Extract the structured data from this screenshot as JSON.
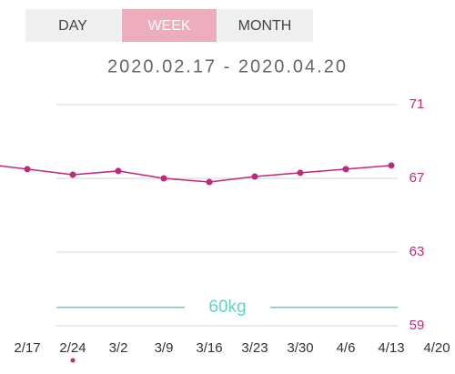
{
  "tabs": [
    "DAY",
    "WEEK",
    "MONTH"
  ],
  "selected_tab": 1,
  "chart_data": {
    "type": "line",
    "title": "2020.02.17 - 2020.04.20",
    "categories": [
      null,
      "2/17",
      "2/24",
      "3/2",
      "3/9",
      "3/16",
      "3/23",
      "3/30",
      "4/6",
      "4/13",
      "4/20"
    ],
    "values": [
      67.8,
      67.5,
      67.2,
      67.4,
      67.0,
      66.8,
      67.1,
      67.3,
      67.5,
      67.7,
      null
    ],
    "color": "#c0287a",
    "ylim": [
      59,
      71
    ],
    "yticks": [
      59,
      63,
      67,
      71
    ],
    "grid": true,
    "goal": {
      "value": 60,
      "label": "60kg",
      "color": "#5fd3c8"
    }
  }
}
